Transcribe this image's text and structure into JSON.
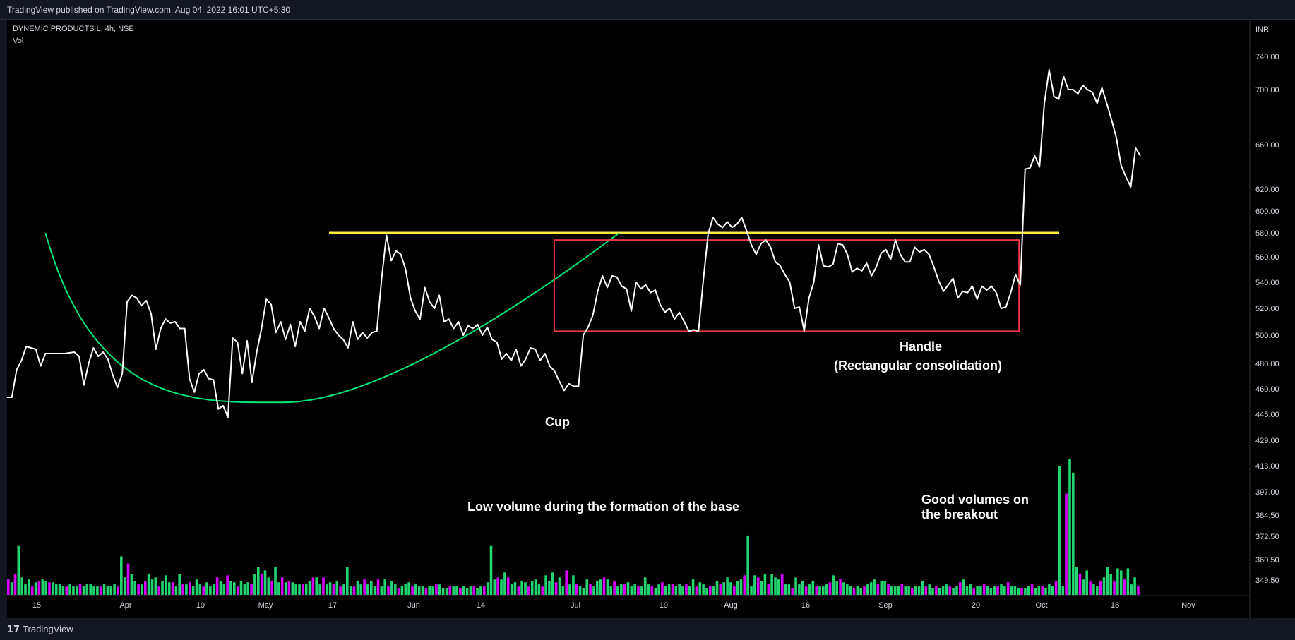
{
  "header": {
    "published": "TradingView published on TradingView.com, Aug 04, 2022 16:01 UTC+5:30"
  },
  "legend": {
    "symbol": "DYNEMIC PRODUCTS L, 4h, NSE",
    "volume_label": "Vol"
  },
  "footer": {
    "brand": "TradingView",
    "logo_glyph": "17"
  },
  "colors": {
    "price_line": "#ffffff",
    "resistance": "#ffeb3b",
    "cup": "#00e676",
    "handle_box": "#f23645",
    "vol_up": "#22d46f",
    "vol_down": "#d500f9",
    "axis_text": "#d1d4dc",
    "panel": "#131722"
  },
  "chart_data": {
    "type": "line",
    "currency": "INR",
    "price_ticks": [
      740,
      700,
      660,
      620,
      600,
      580,
      560,
      540,
      520,
      500,
      480,
      460,
      445,
      429,
      413,
      397,
      384.5,
      372.5,
      360.5,
      349.5
    ],
    "price_tick_labels": [
      "740.00",
      "700.00",
      "660.00",
      "620.00",
      "600.00",
      "580.00",
      "560.00",
      "540.00",
      "520.00",
      "500.00",
      "480.00",
      "460.00",
      "445.00",
      "429.00",
      "413.00",
      "397.00",
      "384.50",
      "372.50",
      "360.50",
      "349.50"
    ],
    "x_tick_labels": [
      "15",
      "Apr",
      "19",
      "May",
      "17",
      "Jun",
      "14",
      "Jul",
      "19",
      "Aug",
      "16",
      "Sep",
      "20",
      "Oct",
      "18",
      "Nov"
    ],
    "price_series": [
      [
        0,
        455
      ],
      [
        2,
        455
      ],
      [
        4,
        475
      ],
      [
        6,
        482
      ],
      [
        8,
        492
      ],
      [
        10,
        491
      ],
      [
        12,
        490
      ],
      [
        14,
        478
      ],
      [
        16,
        487
      ],
      [
        20,
        487
      ],
      [
        24,
        487
      ],
      [
        28,
        488
      ],
      [
        30,
        485
      ],
      [
        32,
        463
      ],
      [
        34,
        480
      ],
      [
        36,
        491
      ],
      [
        38,
        485
      ],
      [
        40,
        488
      ],
      [
        42,
        483
      ],
      [
        44,
        471
      ],
      [
        46,
        461
      ],
      [
        48,
        472
      ],
      [
        50,
        525
      ],
      [
        52,
        530
      ],
      [
        54,
        528
      ],
      [
        56,
        522
      ],
      [
        58,
        526
      ],
      [
        60,
        516
      ],
      [
        62,
        490
      ],
      [
        64,
        505
      ],
      [
        66,
        512
      ],
      [
        68,
        509
      ],
      [
        70,
        510
      ],
      [
        72,
        505
      ],
      [
        74,
        505
      ],
      [
        76,
        468
      ],
      [
        78,
        458
      ],
      [
        80,
        472
      ],
      [
        82,
        475
      ],
      [
        84,
        468
      ],
      [
        86,
        467
      ],
      [
        88,
        448
      ],
      [
        90,
        450
      ],
      [
        92,
        443
      ],
      [
        94,
        498
      ],
      [
        96,
        495
      ],
      [
        98,
        472
      ],
      [
        100,
        496
      ],
      [
        102,
        465
      ],
      [
        104,
        488
      ],
      [
        106,
        505
      ],
      [
        108,
        527
      ],
      [
        110,
        523
      ],
      [
        112,
        502
      ],
      [
        114,
        510
      ],
      [
        116,
        497
      ],
      [
        118,
        508
      ],
      [
        120,
        492
      ],
      [
        122,
        510
      ],
      [
        124,
        503
      ],
      [
        126,
        520
      ],
      [
        128,
        514
      ],
      [
        130,
        505
      ],
      [
        132,
        520
      ],
      [
        134,
        513
      ],
      [
        136,
        505
      ],
      [
        138,
        500
      ],
      [
        140,
        497
      ],
      [
        142,
        491
      ],
      [
        144,
        510
      ],
      [
        146,
        497
      ],
      [
        148,
        502
      ],
      [
        150,
        498
      ],
      [
        152,
        502
      ],
      [
        154,
        503
      ],
      [
        156,
        543
      ],
      [
        158,
        578
      ],
      [
        160,
        557
      ],
      [
        162,
        565
      ],
      [
        164,
        562
      ],
      [
        166,
        550
      ],
      [
        168,
        528
      ],
      [
        170,
        518
      ],
      [
        172,
        512
      ],
      [
        174,
        536
      ],
      [
        176,
        525
      ],
      [
        178,
        520
      ],
      [
        180,
        530
      ],
      [
        182,
        510
      ],
      [
        184,
        512
      ],
      [
        186,
        505
      ],
      [
        188,
        510
      ],
      [
        190,
        500
      ],
      [
        192,
        507
      ],
      [
        194,
        505
      ],
      [
        196,
        508
      ],
      [
        198,
        500
      ],
      [
        200,
        506
      ],
      [
        202,
        497
      ],
      [
        204,
        495
      ],
      [
        206,
        483
      ],
      [
        208,
        487
      ],
      [
        210,
        482
      ],
      [
        212,
        490
      ],
      [
        214,
        478
      ],
      [
        216,
        483
      ],
      [
        218,
        491
      ],
      [
        220,
        490
      ],
      [
        222,
        482
      ],
      [
        224,
        487
      ],
      [
        226,
        478
      ],
      [
        228,
        474
      ],
      [
        230,
        466
      ],
      [
        232,
        459
      ],
      [
        234,
        464
      ],
      [
        236,
        462
      ],
      [
        238,
        462
      ],
      [
        240,
        500
      ],
      [
        242,
        506
      ],
      [
        244,
        515
      ],
      [
        246,
        533
      ],
      [
        248,
        545
      ],
      [
        250,
        536
      ],
      [
        252,
        545
      ],
      [
        254,
        544
      ],
      [
        256,
        537
      ],
      [
        258,
        535
      ],
      [
        260,
        518
      ],
      [
        262,
        540
      ],
      [
        264,
        535
      ],
      [
        266,
        538
      ],
      [
        268,
        532
      ],
      [
        270,
        534
      ],
      [
        272,
        523
      ],
      [
        274,
        517
      ],
      [
        276,
        520
      ],
      [
        278,
        512
      ],
      [
        280,
        517
      ],
      [
        282,
        510
      ],
      [
        284,
        503
      ],
      [
        286,
        504
      ],
      [
        288,
        503
      ],
      [
        290,
        542
      ],
      [
        292,
        579
      ],
      [
        294,
        594
      ],
      [
        296,
        588
      ],
      [
        298,
        585
      ],
      [
        300,
        590
      ],
      [
        302,
        585
      ],
      [
        304,
        588
      ],
      [
        306,
        594
      ],
      [
        308,
        582
      ],
      [
        310,
        570
      ],
      [
        312,
        562
      ],
      [
        314,
        571
      ],
      [
        316,
        574
      ],
      [
        318,
        568
      ],
      [
        320,
        556
      ],
      [
        322,
        553
      ],
      [
        324,
        546
      ],
      [
        326,
        540
      ],
      [
        328,
        520
      ],
      [
        330,
        521
      ],
      [
        332,
        503
      ],
      [
        334,
        528
      ],
      [
        336,
        540
      ],
      [
        338,
        570
      ],
      [
        340,
        553
      ],
      [
        342,
        552
      ],
      [
        344,
        554
      ],
      [
        346,
        571
      ],
      [
        348,
        570
      ],
      [
        350,
        562
      ],
      [
        352,
        548
      ],
      [
        354,
        551
      ],
      [
        356,
        549
      ],
      [
        358,
        555
      ],
      [
        360,
        545
      ],
      [
        362,
        552
      ],
      [
        364,
        563
      ],
      [
        366,
        566
      ],
      [
        368,
        558
      ],
      [
        370,
        574
      ],
      [
        372,
        562
      ],
      [
        374,
        556
      ],
      [
        376,
        556
      ],
      [
        378,
        568
      ],
      [
        380,
        564
      ],
      [
        382,
        566
      ],
      [
        384,
        562
      ],
      [
        386,
        552
      ],
      [
        388,
        541
      ],
      [
        390,
        533
      ],
      [
        392,
        538
      ],
      [
        394,
        543
      ],
      [
        396,
        528
      ],
      [
        398,
        533
      ],
      [
        400,
        532
      ],
      [
        402,
        537
      ],
      [
        404,
        527
      ],
      [
        406,
        537
      ],
      [
        408,
        534
      ],
      [
        410,
        537
      ],
      [
        412,
        532
      ],
      [
        414,
        520
      ],
      [
        416,
        521
      ],
      [
        418,
        532
      ],
      [
        420,
        546
      ],
      [
        422,
        538
      ],
      [
        424,
        638
      ],
      [
        426,
        639
      ],
      [
        428,
        650
      ],
      [
        430,
        640
      ],
      [
        432,
        690
      ],
      [
        434,
        724
      ],
      [
        436,
        695
      ],
      [
        438,
        693
      ],
      [
        440,
        716
      ],
      [
        442,
        700
      ],
      [
        444,
        700
      ],
      [
        446,
        697
      ],
      [
        448,
        705
      ],
      [
        450,
        700
      ],
      [
        452,
        698
      ],
      [
        454,
        690
      ],
      [
        456,
        702
      ],
      [
        458,
        690
      ],
      [
        460,
        678
      ],
      [
        462,
        665
      ],
      [
        464,
        641
      ],
      [
        466,
        631
      ],
      [
        468,
        622
      ],
      [
        470,
        657
      ],
      [
        472,
        650
      ]
    ],
    "volume_series": {
      "values": [
        22,
        18,
        30,
        70,
        25,
        15,
        22,
        12,
        18,
        20,
        22,
        20,
        18,
        18,
        15,
        15,
        12,
        12,
        15,
        12,
        12,
        15,
        12,
        15,
        15,
        12,
        12,
        12,
        15,
        12,
        12,
        15,
        12,
        55,
        25,
        45,
        30,
        20,
        15,
        15,
        20,
        30,
        22,
        25,
        12,
        20,
        28,
        18,
        18,
        12,
        30,
        15,
        15,
        18,
        12,
        22,
        15,
        12,
        18,
        12,
        15,
        25,
        20,
        15,
        28,
        20,
        18,
        12,
        20,
        15,
        18,
        15,
        30,
        40,
        30,
        35,
        25,
        20,
        40,
        18,
        25,
        18,
        20,
        18,
        15,
        15,
        15,
        15,
        20,
        25,
        25,
        15,
        25,
        15,
        18,
        15,
        20,
        12,
        15,
        40,
        12,
        12,
        20,
        15,
        22,
        15,
        20,
        12,
        22,
        12,
        22,
        12,
        20,
        15,
        10,
        12,
        15,
        18,
        12,
        15,
        12,
        12,
        10,
        12,
        12,
        15,
        15,
        10,
        10,
        12,
        12,
        12,
        10,
        12,
        10,
        12,
        12,
        10,
        12,
        12,
        18,
        70,
        22,
        25,
        22,
        32,
        25,
        15,
        18,
        12,
        20,
        18,
        12,
        20,
        22,
        15,
        12,
        28,
        20,
        32,
        18,
        25,
        12,
        35,
        15,
        28,
        15,
        12,
        10,
        22,
        15,
        12,
        20,
        22,
        25,
        22,
        12,
        20,
        12,
        15,
        15,
        18,
        12,
        15,
        12,
        12,
        25,
        15,
        12,
        10,
        15,
        18,
        12,
        15,
        15,
        12,
        15,
        12,
        15,
        12,
        22,
        12,
        18,
        15,
        10,
        12,
        12,
        20,
        15,
        18,
        25,
        18,
        12,
        20,
        22,
        28,
        85,
        12,
        28,
        25,
        20,
        30,
        15,
        30,
        25,
        22,
        30,
        15,
        15,
        10,
        25,
        15,
        20,
        12,
        15,
        20,
        12,
        12,
        12,
        15,
        18,
        28,
        20,
        22,
        18,
        15,
        12,
        10,
        12,
        10,
        12,
        15,
        18,
        22,
        15,
        20,
        20,
        15,
        12,
        12,
        12,
        15,
        12,
        12,
        10,
        12,
        12,
        20,
        12,
        15,
        10,
        12,
        10,
        12,
        15,
        12,
        10,
        12,
        18,
        22,
        12,
        15,
        10,
        12,
        12,
        15,
        12,
        10,
        12,
        12,
        15,
        12,
        18,
        12,
        12,
        10,
        10,
        10,
        12,
        15,
        10,
        12,
        12,
        10,
        15,
        12,
        20,
        185,
        12,
        145,
        195,
        175,
        40,
        30,
        22,
        35,
        20,
        15,
        12,
        20,
        25,
        40,
        30,
        20,
        38,
        35,
        22,
        38,
        15,
        25,
        12
      ],
      "down_indices": [
        0,
        2,
        7,
        9,
        12,
        17,
        21,
        27,
        32,
        35,
        38,
        40,
        44,
        48,
        51,
        53,
        57,
        61,
        64,
        67,
        71,
        74,
        77,
        80,
        82,
        86,
        89,
        92,
        95,
        97,
        101,
        104,
        108,
        111,
        114,
        118,
        122,
        125,
        129,
        132,
        136,
        139,
        143,
        146,
        149,
        152,
        156,
        160,
        163,
        166,
        170,
        174,
        177,
        180,
        184,
        188,
        191,
        194,
        198,
        201,
        205,
        208,
        212,
        215,
        219,
        222,
        226,
        229,
        233,
        236,
        240,
        243,
        247,
        250,
        254,
        257,
        261,
        264,
        268,
        271,
        275,
        278,
        282,
        285,
        289,
        292,
        296,
        299,
        302,
        306,
        309,
        313,
        316,
        319,
        323,
        326,
        330,
        333,
        337,
        340,
        344,
        347,
        350,
        353,
        356,
        359
      ],
      "note_values_relative": true
    },
    "annotations": {
      "cup_label": "Cup",
      "handle_label": "Handle",
      "handle_sub": "(Rectangular consolidation)",
      "base_volume_note": "Low volume during the formation of the base",
      "breakout_line1": "Good volumes on",
      "breakout_line2": "the breakout"
    },
    "resistance_level": 580,
    "cup": {
      "start": [
        16,
        580
      ],
      "bottom": [
        115,
        452
      ],
      "end": [
        255,
        580
      ]
    },
    "handle": {
      "x_start": 222,
      "x_end": 420,
      "price_top": 574,
      "price_bottom": 504
    }
  }
}
